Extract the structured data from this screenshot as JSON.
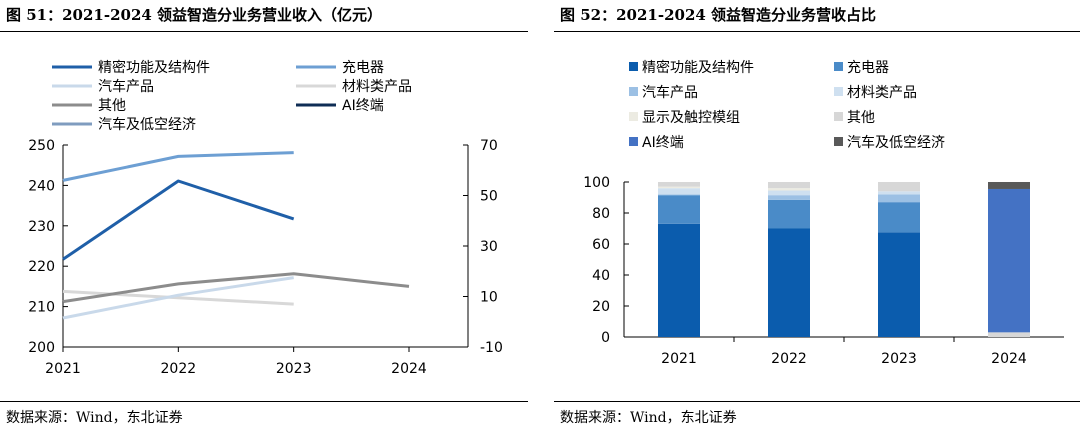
{
  "left_figure": {
    "title": "图 51：2021-2024 领益智造分业务营业收入（亿元）",
    "source": "数据来源：Wind，东北证券"
  },
  "right_figure": {
    "title": "图 52：2021-2024 领益智造分业务营收占比",
    "source": "数据来源：Wind，东北证券"
  },
  "chart_data": [
    {
      "type": "line",
      "title": "图 51：2021-2024 领益智造分业务营业收入（亿元）",
      "x": [
        "2021",
        "2022",
        "2023",
        "2024"
      ],
      "y_left": {
        "range": [
          200,
          250
        ],
        "ticks": [
          200,
          210,
          220,
          230,
          240,
          250
        ]
      },
      "y_right": {
        "range": [
          -10,
          70
        ],
        "ticks": [
          -10,
          10,
          30,
          50,
          70
        ]
      },
      "legend_position": "top",
      "grid": false,
      "series": [
        {
          "name": "精密功能及结构件",
          "axis": "left",
          "color": "#1f5fa8",
          "width": 3,
          "values": [
            221.7,
            241.1,
            231.7,
            null
          ]
        },
        {
          "name": "充电器",
          "axis": "right",
          "color": "#6d9fd3",
          "width": 3,
          "values": [
            56.0,
            65.5,
            67.0,
            null
          ]
        },
        {
          "name": "汽车产品",
          "axis": "right",
          "color": "#c9d9ea",
          "width": 3,
          "values": [
            1.5,
            10.5,
            17.5,
            null
          ]
        },
        {
          "name": "材料类产品",
          "axis": "right",
          "color": "#d8d8d8",
          "width": 3,
          "values": [
            12.0,
            9.5,
            7.0,
            null
          ]
        },
        {
          "name": "其他",
          "axis": "right",
          "color": "#8c8c8c",
          "width": 3,
          "values": [
            8.0,
            15.0,
            19.0,
            14.0
          ]
        },
        {
          "name": "AI终端",
          "axis": "left",
          "color": "#0f2d55",
          "width": 3,
          "values": [
            null,
            null,
            null,
            null
          ]
        },
        {
          "name": "汽车及低空经济",
          "axis": "left",
          "color": "#7f9cbf",
          "width": 3,
          "values": [
            null,
            null,
            null,
            null
          ]
        }
      ]
    },
    {
      "type": "bar",
      "stacked": true,
      "title": "图 52：2021-2024 领益智造分业务营收占比",
      "categories": [
        "2021",
        "2022",
        "2023",
        "2024"
      ],
      "ylim": [
        0,
        100
      ],
      "yticks": [
        0,
        20,
        40,
        60,
        80,
        100
      ],
      "legend_position": "top",
      "grid": false,
      "series": [
        {
          "name": "精密功能及结构件",
          "color": "#0b5cad",
          "values": [
            73,
            70,
            67.5,
            0
          ]
        },
        {
          "name": "充电器",
          "color": "#4a8bc8",
          "values": [
            18.5,
            18.5,
            19.5,
            0
          ]
        },
        {
          "name": "汽车产品",
          "color": "#9cc0e4",
          "values": [
            0.5,
            3,
            5,
            0
          ]
        },
        {
          "name": "材料类产品",
          "color": "#cfe0f0",
          "values": [
            4,
            3,
            2,
            0
          ]
        },
        {
          "name": "显示及触控模组",
          "color": "#ecebe2",
          "values": [
            1,
            1.5,
            0,
            0
          ]
        },
        {
          "name": "其他",
          "color": "#d7d7d7",
          "values": [
            3,
            4,
            6,
            3
          ]
        },
        {
          "name": "AI终端",
          "color": "#4472c4",
          "values": [
            0,
            0,
            0,
            92.5
          ]
        },
        {
          "name": "汽车及低空经济",
          "color": "#595959",
          "values": [
            0,
            0,
            0,
            4.5
          ]
        }
      ]
    }
  ]
}
